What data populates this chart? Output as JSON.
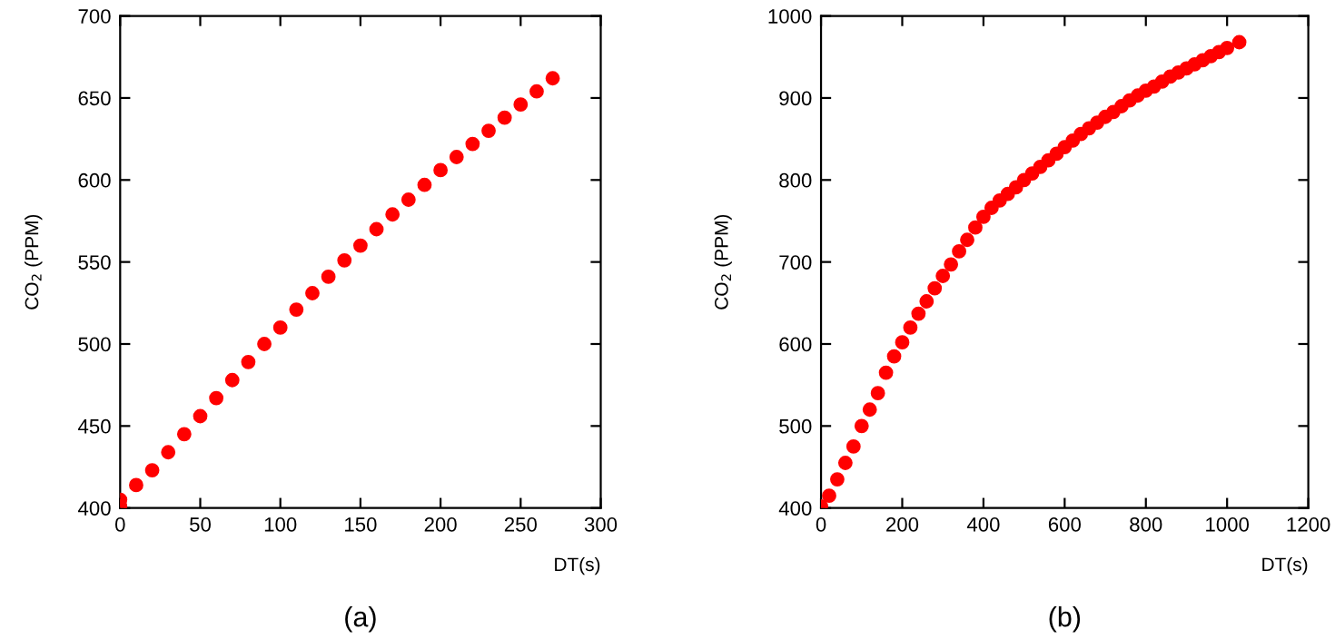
{
  "chart_data": [
    {
      "type": "scatter",
      "xlabel": "DT(s)",
      "ylabel": "CO$_{2}$ (PPM)",
      "annotations": [
        "(a)"
      ],
      "marker": "circle",
      "grid": false,
      "legend": false,
      "xlim": [
        0,
        300
      ],
      "ylim": [
        400,
        700
      ],
      "xticks": [
        0,
        50,
        100,
        150,
        200,
        250,
        300
      ],
      "yticks": [
        400,
        450,
        500,
        550,
        600,
        650,
        700
      ],
      "series": [
        {
          "color": "#ff0000",
          "x": [
            0,
            0,
            10,
            20,
            30,
            40,
            50,
            60,
            70,
            80,
            90,
            100,
            110,
            120,
            130,
            140,
            150,
            160,
            170,
            180,
            190,
            200,
            210,
            220,
            230,
            240,
            250,
            260,
            270
          ],
          "values": [
            401,
            405,
            414,
            423,
            434,
            445,
            456,
            467,
            478,
            489,
            500,
            510,
            521,
            531,
            541,
            551,
            560,
            570,
            579,
            588,
            597,
            606,
            614,
            622,
            630,
            638,
            646,
            654,
            662
          ]
        }
      ]
    },
    {
      "type": "scatter",
      "xlabel": "DT(s)",
      "ylabel": "CO$_{2}$ (PPM)",
      "annotations": [
        "(b)"
      ],
      "marker": "circle",
      "grid": false,
      "legend": false,
      "xlim": [
        0,
        1200
      ],
      "ylim": [
        400,
        1000
      ],
      "xticks": [
        0,
        200,
        400,
        600,
        800,
        1000,
        1200
      ],
      "yticks": [
        400,
        500,
        600,
        700,
        800,
        900,
        1000
      ],
      "series": [
        {
          "color": "#ff0000",
          "x": [
            0,
            20,
            40,
            60,
            80,
            100,
            120,
            140,
            160,
            180,
            200,
            220,
            240,
            260,
            280,
            300,
            320,
            340,
            360,
            380,
            400,
            420,
            440,
            460,
            480,
            500,
            520,
            540,
            560,
            580,
            600,
            620,
            640,
            660,
            680,
            700,
            720,
            740,
            760,
            780,
            800,
            820,
            840,
            860,
            880,
            900,
            920,
            940,
            960,
            980,
            1000,
            1030
          ],
          "values": [
            402,
            415,
            435,
            455,
            475,
            500,
            520,
            540,
            565,
            585,
            602,
            620,
            637,
            652,
            668,
            683,
            697,
            713,
            727,
            742,
            755,
            766,
            775,
            783,
            791,
            800,
            808,
            816,
            824,
            832,
            840,
            848,
            856,
            863,
            870,
            877,
            883,
            890,
            897,
            903,
            909,
            914,
            920,
            926,
            931,
            936,
            941,
            946,
            951,
            956,
            961,
            968
          ]
        }
      ]
    }
  ]
}
